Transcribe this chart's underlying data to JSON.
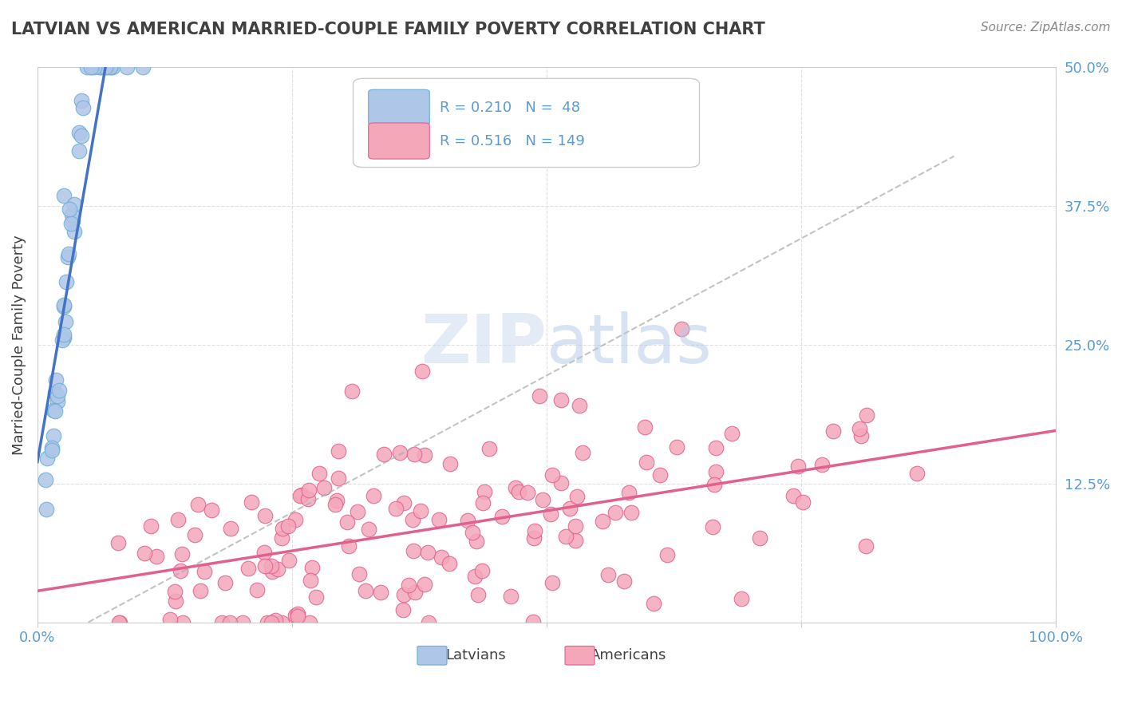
{
  "title": "LATVIAN VS AMERICAN MARRIED-COUPLE FAMILY POVERTY CORRELATION CHART",
  "source": "Source: ZipAtlas.com",
  "ylabel": "Married-Couple Family Poverty",
  "xlabel": "",
  "xlim": [
    0,
    1.0
  ],
  "ylim": [
    0,
    0.5
  ],
  "xticks": [
    0.0,
    0.25,
    0.5,
    0.75,
    1.0
  ],
  "xticklabels": [
    "0.0%",
    "",
    "",
    "",
    "100.0%"
  ],
  "yticks": [
    0.0,
    0.125,
    0.25,
    0.375,
    0.5
  ],
  "yticklabels": [
    "",
    "12.5%",
    "25.0%",
    "37.5%",
    "50.0%"
  ],
  "latvian_color": "#aec6e8",
  "latvian_edge": "#6aaed6",
  "american_color": "#f4a7b9",
  "american_edge": "#e06090",
  "latvian_R": 0.21,
  "latvian_N": 48,
  "american_R": 0.516,
  "american_N": 149,
  "watermark": "ZIPatlas",
  "watermark_color": "#c8d8f0",
  "background_color": "#ffffff",
  "grid_color": "#e0e0e0",
  "title_color": "#404040",
  "tick_label_color": "#5b9bd5",
  "legend_R_color": "#5b9bd5",
  "legend_N_color": "#5b9bd5"
}
